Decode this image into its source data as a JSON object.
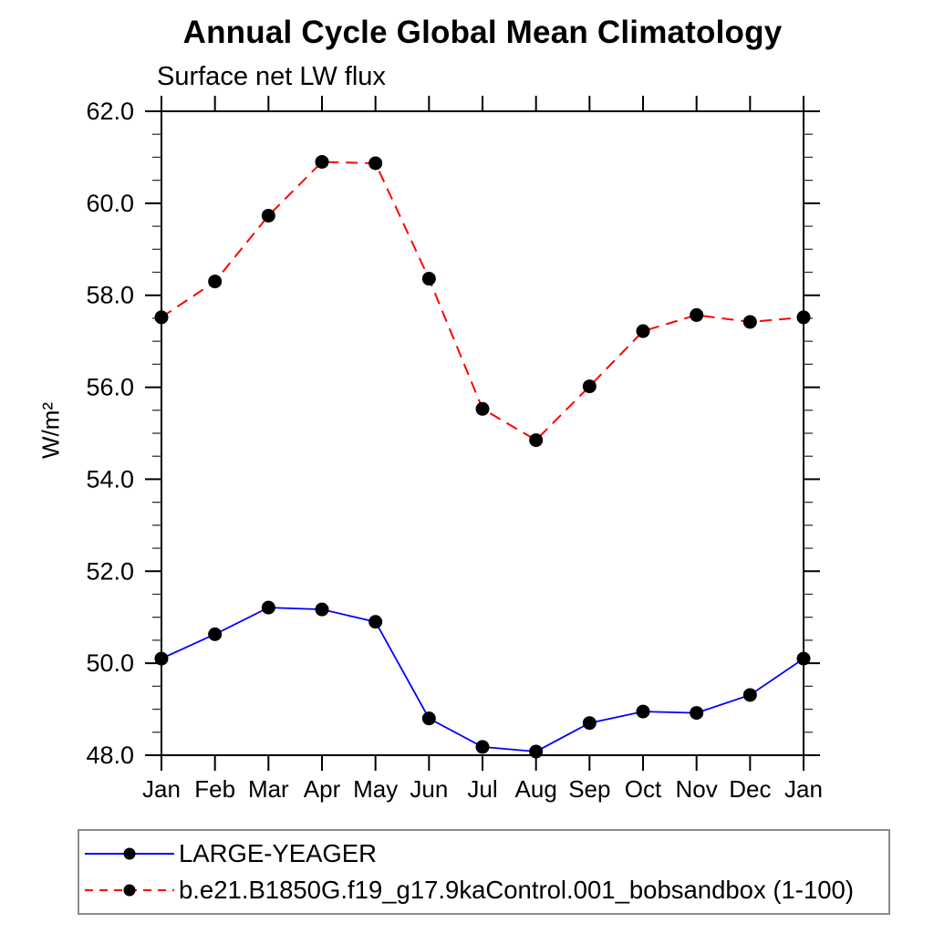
{
  "chart_data": {
    "type": "line",
    "title": "Annual Cycle Global Mean Climatology",
    "subtitle": "Surface net LW flux",
    "ylabel": "W/m²",
    "xlabel": "",
    "categories": [
      "Jan",
      "Feb",
      "Mar",
      "Apr",
      "May",
      "Jun",
      "Jul",
      "Aug",
      "Sep",
      "Oct",
      "Nov",
      "Dec",
      "Jan"
    ],
    "ylim": [
      48.0,
      62.0
    ],
    "ytick_step": 2.0,
    "yminor_step": 0.5,
    "ytick_format_decimals": 1,
    "grid": false,
    "legend_position": "bottom-left boxed",
    "frame_color": "#000000",
    "marker": "filled-circle",
    "marker_color": "#000000",
    "series": [
      {
        "name": "LARGE-YEAGER",
        "color": "#0000ff",
        "line_style": "solid",
        "values": [
          50.1,
          50.63,
          51.21,
          51.17,
          50.9,
          48.8,
          48.18,
          48.08,
          48.7,
          48.95,
          48.92,
          49.31,
          50.1
        ]
      },
      {
        "name": "b.e21.B1850G.f19_g17.9kaControl.001_bobsandbox (1-100)",
        "color": "#ff0000",
        "line_style": "dashed",
        "values": [
          57.52,
          58.3,
          59.73,
          60.9,
          60.87,
          58.36,
          55.53,
          54.85,
          56.02,
          57.22,
          57.57,
          57.42,
          57.52
        ]
      }
    ]
  }
}
